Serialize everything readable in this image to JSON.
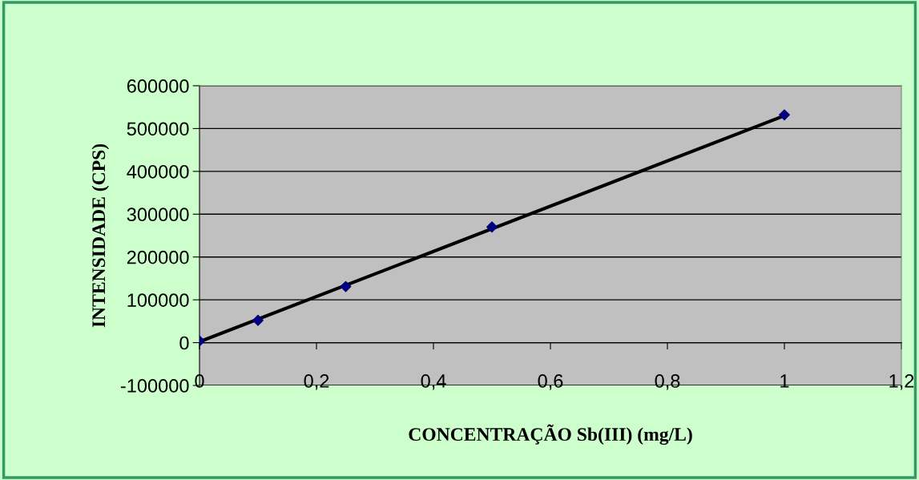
{
  "chart_data": {
    "type": "scatter",
    "xlabel": "CONCENTRAÇÃO Sb(III) (mg/L)",
    "ylabel": "INTENSIDADE (CPS)",
    "x": [
      0,
      0.1,
      0.25,
      0.5,
      1
    ],
    "series": [
      {
        "color": "#000080",
        "marker": "diamond",
        "values": [
          4000,
          52000,
          131000,
          270000,
          532000
        ]
      },
      {
        "type": "line",
        "color": "#000000",
        "marker": "none",
        "x": [
          0,
          1
        ],
        "values": [
          2000,
          530000
        ]
      }
    ],
    "xlim": [
      0,
      1.2
    ],
    "xticks": [
      0,
      {
        "value": 0.2,
        "label": "0,2"
      },
      {
        "value": 0.4,
        "label": "0,4"
      },
      {
        "value": 0.6,
        "label": "0,6"
      },
      {
        "value": 0.8,
        "label": "0,8"
      },
      1,
      {
        "value": 1.2,
        "label": "1,2"
      }
    ],
    "ylim": [
      -100000,
      600000
    ],
    "yticks": [
      -100000,
      0,
      100000,
      200000,
      300000,
      400000,
      500000,
      600000
    ],
    "grid": "y",
    "legend": false
  }
}
